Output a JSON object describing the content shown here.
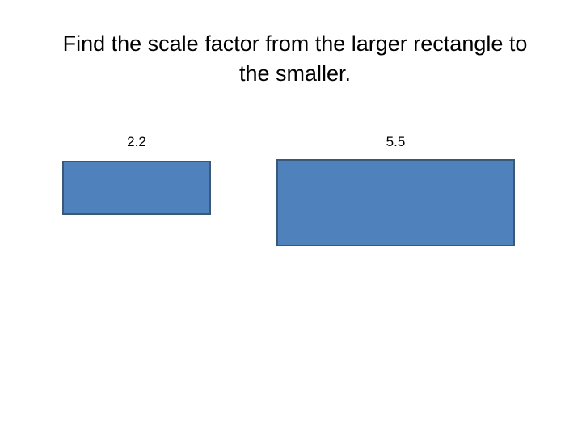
{
  "slide": {
    "background": "#ffffff",
    "title": {
      "text": "Find the scale factor from the larger rectangle to the smaller.",
      "lines": [
        "Find the scale factor from the larger rectangle to",
        "the smaller."
      ],
      "color": "#000000"
    },
    "figures": [
      {
        "name": "small-rectangle",
        "label": "2.2",
        "fill": "#4f81bd",
        "border": "#3a5878"
      },
      {
        "name": "large-rectangle",
        "label": "5.5",
        "fill": "#4f81bd",
        "border": "#3a5878"
      }
    ]
  }
}
